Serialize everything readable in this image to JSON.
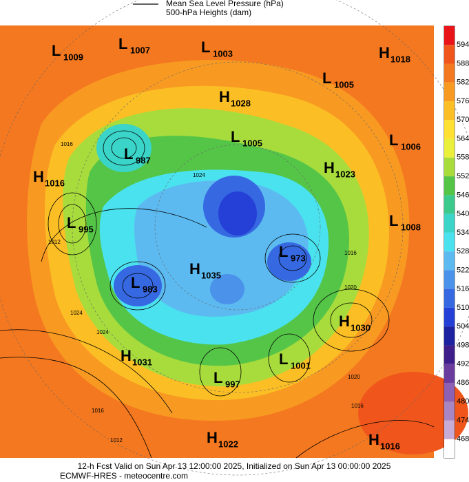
{
  "legend": {
    "line1": "Mean Sea Level Pressure (hPa)",
    "line2": "500-hPa Heights (dam)"
  },
  "colorbar": {
    "labels": [
      594,
      588,
      582,
      576,
      570,
      564,
      558,
      552,
      546,
      540,
      534,
      528,
      522,
      516,
      510,
      504,
      498,
      492,
      486,
      480,
      474,
      468
    ],
    "colors": [
      "#e8141a",
      "#f0561c",
      "#f4781f",
      "#f89a22",
      "#fbbf25",
      "#ffe033",
      "#e9ef3a",
      "#a8dc3c",
      "#55c548",
      "#3cc98c",
      "#3ad4c8",
      "#4ae2ee",
      "#5cbaf0",
      "#4a92ea",
      "#3668e2",
      "#2440d6",
      "#1c22a0",
      "#3e1e8a",
      "#6a3c9e",
      "#8c60b2",
      "#a886c4",
      "#c8acd8",
      "#ffffff"
    ]
  },
  "centers": [
    {
      "letter": "L",
      "value": 1009
    },
    {
      "letter": "L",
      "value": 1007
    },
    {
      "letter": "L",
      "value": 1003
    },
    {
      "letter": "H",
      "value": 1018
    },
    {
      "letter": "L",
      "value": 1005
    },
    {
      "letter": "H",
      "value": 1028
    },
    {
      "letter": "L",
      "value": 1005
    },
    {
      "letter": "L",
      "value": 1006
    },
    {
      "letter": "L",
      "value": 987
    },
    {
      "letter": "H",
      "value": 1023
    },
    {
      "letter": "H",
      "value": 1016
    },
    {
      "letter": "L",
      "value": 995
    },
    {
      "letter": "L",
      "value": 1008
    },
    {
      "letter": "L",
      "value": 973
    },
    {
      "letter": "H",
      "value": 1035
    },
    {
      "letter": "L",
      "value": 983
    },
    {
      "letter": "H",
      "value": 1030
    },
    {
      "letter": "H",
      "value": 1031
    },
    {
      "letter": "L",
      "value": 1001
    },
    {
      "letter": "L",
      "value": 997
    },
    {
      "letter": "H",
      "value": 1022
    },
    {
      "letter": "H",
      "value": 1016
    }
  ],
  "isobar_labels": [
    1016,
    1012,
    1024,
    1024,
    1020,
    1016,
    1012,
    1020,
    1016,
    1024,
    1016
  ],
  "footer": {
    "line1": "12-h Fcst Valid on Sun Apr 13 12:00:00 2025, Initialized on Sun Apr 13 00:00:00 2025",
    "line2": "ECMWF-HRES  - meteocentre.com"
  }
}
